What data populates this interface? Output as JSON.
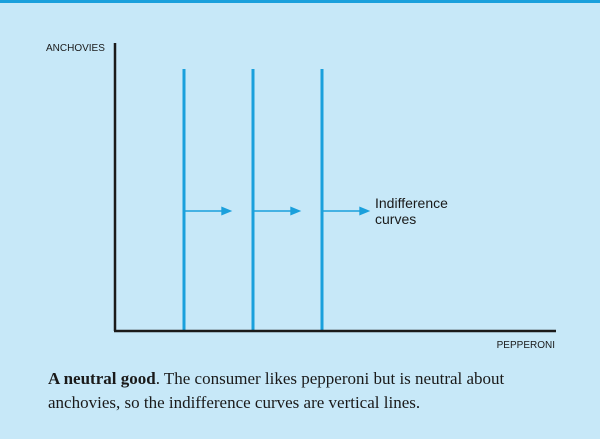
{
  "colors": {
    "background": "#c7e8f8",
    "top_rule": "#1aa0dc",
    "curve": "#1aa0dc",
    "axis": "#1a1a1a"
  },
  "chart_data": {
    "type": "line",
    "xlabel": "PEPPERONI",
    "ylabel": "ANCHOVIES",
    "series": [
      {
        "x": [
          1,
          1
        ],
        "y": [
          0,
          1
        ]
      },
      {
        "x": [
          2,
          2
        ],
        "y": [
          0,
          1
        ]
      },
      {
        "x": [
          3,
          3
        ],
        "y": [
          0,
          1
        ]
      }
    ],
    "annotation": [
      "Indifference",
      "curves"
    ],
    "arrows": [
      {
        "from": 1,
        "to": 1.7
      },
      {
        "from": 2,
        "to": 2.7
      },
      {
        "from": 3,
        "to": 3.7
      }
    ]
  },
  "caption": {
    "title": "A neutral good",
    "text": ". The consumer likes pepperoni but is neutral about anchovies, so the indifference curves are vertical lines."
  }
}
